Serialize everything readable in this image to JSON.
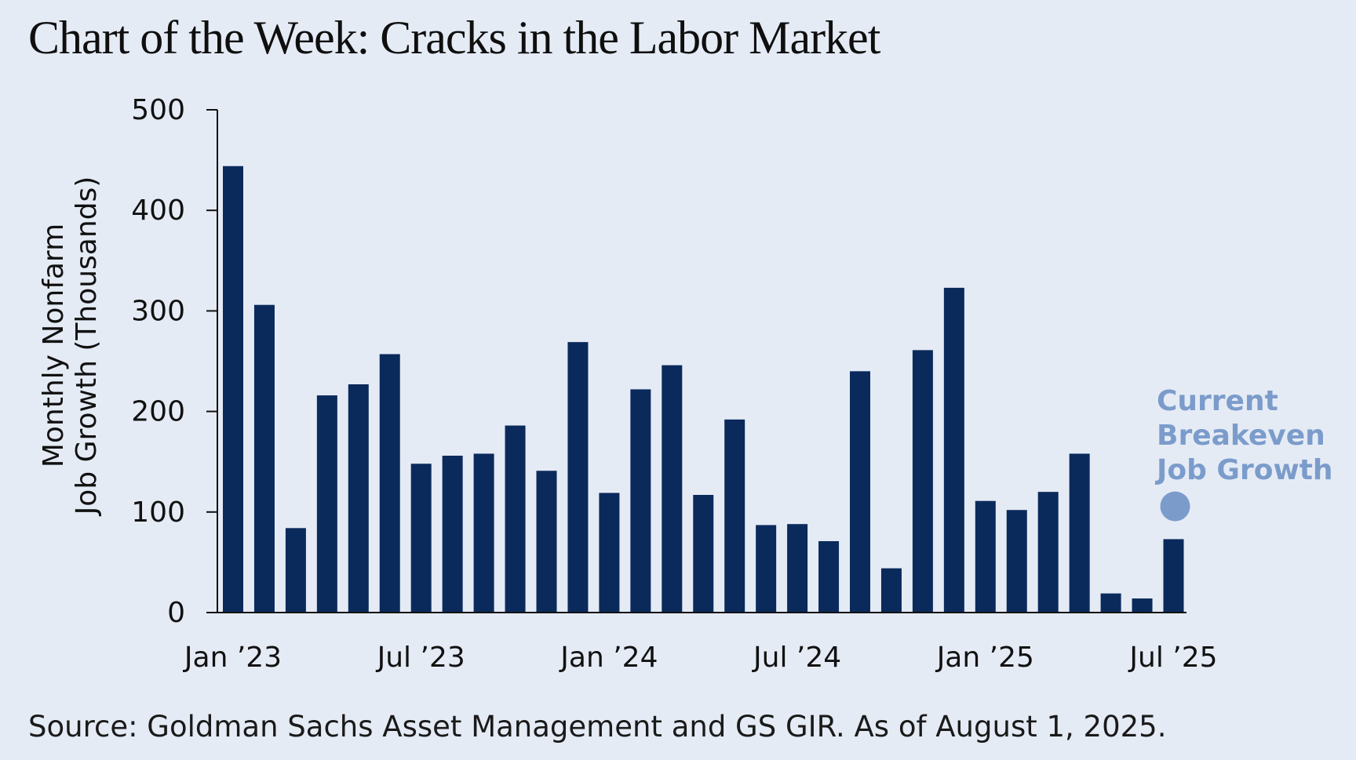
{
  "title": "Chart of the Week: Cracks in the Labor Market",
  "source": "Source: Goldman Sachs Asset Management and GS GIR. As of August 1, 2025.",
  "colors": {
    "background": "#e5ebf5",
    "bar": "#0b2a5c",
    "annotation": "#7b9ccb",
    "axis": "#111111"
  },
  "chart_data": {
    "type": "bar",
    "ylabel": [
      "Monthly Nonfarm",
      "Job Growth (Thousands)"
    ],
    "xlabel": "",
    "ylim": [
      0,
      500
    ],
    "yticks": [
      0,
      100,
      200,
      300,
      400,
      500
    ],
    "grid": false,
    "categories": [
      "Jan 2023",
      "Feb 2023",
      "Mar 2023",
      "Apr 2023",
      "May 2023",
      "Jun 2023",
      "Jul 2023",
      "Aug 2023",
      "Sep 2023",
      "Oct 2023",
      "Nov 2023",
      "Dec 2023",
      "Jan 2024",
      "Feb 2024",
      "Mar 2024",
      "Apr 2024",
      "May 2024",
      "Jun 2024",
      "Jul 2024",
      "Aug 2024",
      "Sep 2024",
      "Oct 2024",
      "Nov 2024",
      "Dec 2024",
      "Jan 2025",
      "Feb 2025",
      "Mar 2025",
      "Apr 2025",
      "May 2025",
      "Jun 2025",
      "Jul 2025"
    ],
    "values": [
      444,
      306,
      84,
      216,
      227,
      257,
      148,
      156,
      158,
      186,
      141,
      269,
      119,
      222,
      246,
      117,
      192,
      87,
      88,
      71,
      240,
      44,
      261,
      323,
      111,
      102,
      120,
      158,
      19,
      14,
      73
    ],
    "xtick_labels": [
      {
        "index": 0,
        "label": "Jan ’23"
      },
      {
        "index": 6,
        "label": "Jul ’23"
      },
      {
        "index": 12,
        "label": "Jan ’24"
      },
      {
        "index": 18,
        "label": "Jul ’24"
      },
      {
        "index": 24,
        "label": "Jan ’25"
      },
      {
        "index": 30,
        "label": "Jul ’25"
      }
    ],
    "annotation": {
      "lines": [
        "Current",
        "Breakeven",
        "Job Growth"
      ],
      "marker_index": 30,
      "marker_value": 90
    }
  }
}
